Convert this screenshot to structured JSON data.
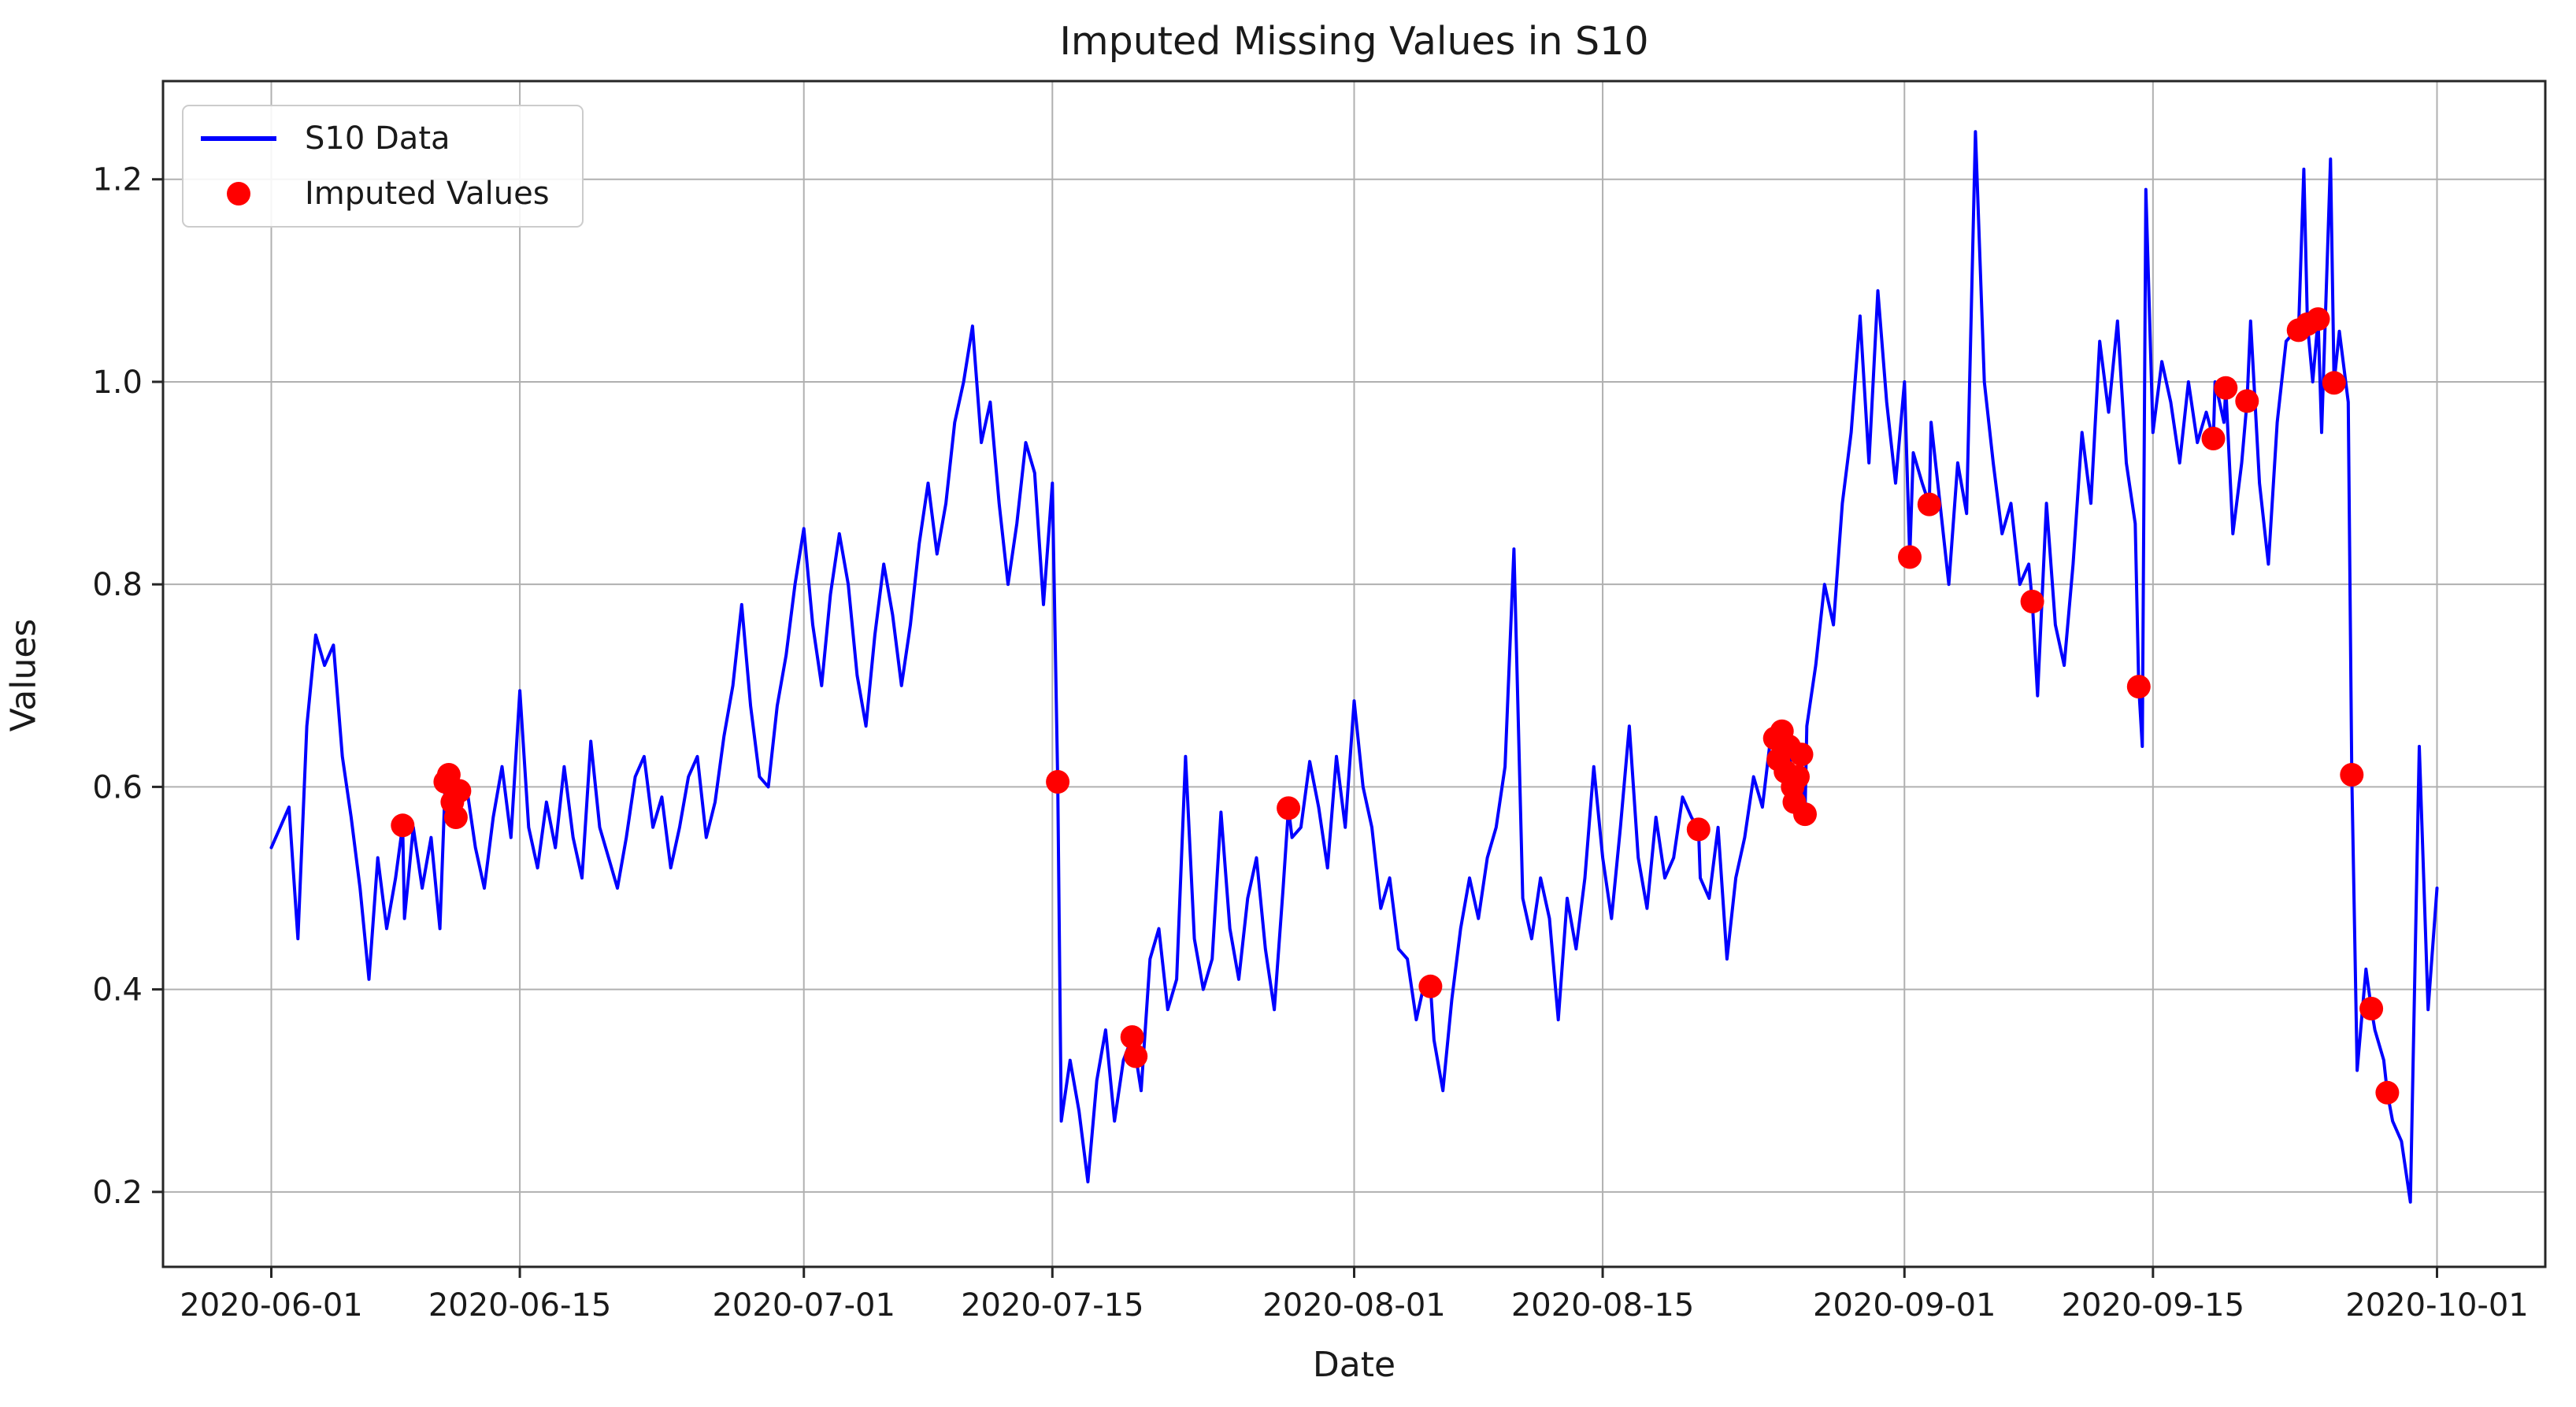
{
  "title": "Imputed Missing Values in S10",
  "axes": {
    "xlabel": "Date",
    "ylabel": "Values",
    "x_ticks": [
      {
        "day": 0,
        "label": "2020-06-01"
      },
      {
        "day": 14,
        "label": "2020-06-15"
      },
      {
        "day": 30,
        "label": "2020-07-01"
      },
      {
        "day": 44,
        "label": "2020-07-15"
      },
      {
        "day": 61,
        "label": "2020-08-01"
      },
      {
        "day": 75,
        "label": "2020-08-15"
      },
      {
        "day": 92,
        "label": "2020-09-01"
      },
      {
        "day": 106,
        "label": "2020-09-15"
      },
      {
        "day": 122,
        "label": "2020-10-01"
      }
    ],
    "y_ticks": [
      {
        "value": 0.2,
        "label": "0.2"
      },
      {
        "value": 0.4,
        "label": "0.4"
      },
      {
        "value": 0.6,
        "label": "0.6"
      },
      {
        "value": 0.8,
        "label": "0.8"
      },
      {
        "value": 1.0,
        "label": "1.0"
      },
      {
        "value": 1.2,
        "label": "1.2"
      }
    ],
    "grid": true,
    "grid_color": "#b0b0b0",
    "spine_color": "#262626"
  },
  "legend": {
    "items": [
      {
        "label": "S10 Data",
        "marker": "line",
        "color": "#0000ff"
      },
      {
        "label": "Imputed Values",
        "marker": "dot",
        "color": "#ff0000"
      }
    ],
    "position": "upper-left"
  },
  "chart_data": {
    "type": "line",
    "x_unit": "days since 2020-06-01",
    "xlim_days": [
      -6.1,
      128.1
    ],
    "ylim": [
      0.126,
      1.297
    ],
    "series": [
      {
        "name": "S10 Data",
        "color": "#0000ff",
        "points": [
          [
            0,
            0.54
          ],
          [
            0.5,
            0.56
          ],
          [
            1,
            0.58
          ],
          [
            1.5,
            0.45
          ],
          [
            2,
            0.66
          ],
          [
            2.5,
            0.75
          ],
          [
            3,
            0.72
          ],
          [
            3.5,
            0.74
          ],
          [
            4,
            0.63
          ],
          [
            4.5,
            0.57
          ],
          [
            5,
            0.5
          ],
          [
            5.5,
            0.41
          ],
          [
            6,
            0.53
          ],
          [
            6.5,
            0.46
          ],
          [
            7,
            0.51
          ],
          [
            7.5,
            0.47
          ],
          [
            8,
            0.56
          ],
          [
            8.5,
            0.5
          ],
          [
            9,
            0.55
          ],
          [
            9.5,
            0.46
          ],
          [
            11,
            0.6
          ],
          [
            11.5,
            0.54
          ],
          [
            12,
            0.5
          ],
          [
            12.5,
            0.57
          ],
          [
            13,
            0.62
          ],
          [
            13.5,
            0.55
          ],
          [
            14,
            0.695
          ],
          [
            14.5,
            0.56
          ],
          [
            15,
            0.52
          ],
          [
            15.5,
            0.585
          ],
          [
            16,
            0.54
          ],
          [
            16.5,
            0.62
          ],
          [
            17,
            0.55
          ],
          [
            17.5,
            0.51
          ],
          [
            18,
            0.645
          ],
          [
            18.5,
            0.56
          ],
          [
            19,
            0.53
          ],
          [
            19.5,
            0.5
          ],
          [
            20,
            0.55
          ],
          [
            20.5,
            0.61
          ],
          [
            21,
            0.63
          ],
          [
            21.5,
            0.56
          ],
          [
            22,
            0.59
          ],
          [
            22.5,
            0.52
          ],
          [
            23,
            0.56
          ],
          [
            23.5,
            0.61
          ],
          [
            24,
            0.63
          ],
          [
            24.5,
            0.55
          ],
          [
            25,
            0.585
          ],
          [
            25.5,
            0.65
          ],
          [
            26,
            0.7
          ],
          [
            26.5,
            0.78
          ],
          [
            27,
            0.68
          ],
          [
            27.5,
            0.61
          ],
          [
            28,
            0.6
          ],
          [
            28.5,
            0.68
          ],
          [
            29,
            0.73
          ],
          [
            29.5,
            0.8
          ],
          [
            30,
            0.855
          ],
          [
            30.5,
            0.76
          ],
          [
            31,
            0.7
          ],
          [
            31.5,
            0.79
          ],
          [
            32,
            0.85
          ],
          [
            32.5,
            0.8
          ],
          [
            33,
            0.71
          ],
          [
            33.5,
            0.66
          ],
          [
            34,
            0.75
          ],
          [
            34.5,
            0.82
          ],
          [
            35,
            0.77
          ],
          [
            35.5,
            0.7
          ],
          [
            36,
            0.76
          ],
          [
            36.5,
            0.84
          ],
          [
            37,
            0.9
          ],
          [
            37.5,
            0.83
          ],
          [
            38,
            0.88
          ],
          [
            38.5,
            0.96
          ],
          [
            39,
            1.0
          ],
          [
            39.5,
            1.055
          ],
          [
            40,
            0.94
          ],
          [
            40.5,
            0.98
          ],
          [
            41,
            0.88
          ],
          [
            41.5,
            0.8
          ],
          [
            42,
            0.86
          ],
          [
            42.5,
            0.94
          ],
          [
            43,
            0.91
          ],
          [
            43.5,
            0.78
          ],
          [
            44,
            0.9
          ],
          [
            44.5,
            0.27
          ],
          [
            45,
            0.33
          ],
          [
            45.5,
            0.28
          ],
          [
            46,
            0.21
          ],
          [
            46.5,
            0.31
          ],
          [
            47,
            0.36
          ],
          [
            47.5,
            0.27
          ],
          [
            48,
            0.33
          ],
          [
            49,
            0.3
          ],
          [
            49.5,
            0.43
          ],
          [
            50,
            0.46
          ],
          [
            50.5,
            0.38
          ],
          [
            51,
            0.41
          ],
          [
            51.5,
            0.63
          ],
          [
            52,
            0.45
          ],
          [
            52.5,
            0.4
          ],
          [
            53,
            0.43
          ],
          [
            53.5,
            0.575
          ],
          [
            54,
            0.46
          ],
          [
            54.5,
            0.41
          ],
          [
            55,
            0.49
          ],
          [
            55.5,
            0.53
          ],
          [
            56,
            0.44
          ],
          [
            56.5,
            0.38
          ],
          [
            57,
            0.5
          ],
          [
            57.5,
            0.55
          ],
          [
            58,
            0.56
          ],
          [
            58.5,
            0.625
          ],
          [
            59,
            0.58
          ],
          [
            59.5,
            0.52
          ],
          [
            60,
            0.63
          ],
          [
            60.5,
            0.56
          ],
          [
            61,
            0.685
          ],
          [
            61.5,
            0.6
          ],
          [
            62,
            0.56
          ],
          [
            62.5,
            0.48
          ],
          [
            63,
            0.51
          ],
          [
            63.5,
            0.44
          ],
          [
            64,
            0.43
          ],
          [
            64.5,
            0.37
          ],
          [
            65,
            0.41
          ],
          [
            65.5,
            0.35
          ],
          [
            66,
            0.3
          ],
          [
            66.5,
            0.39
          ],
          [
            67,
            0.46
          ],
          [
            67.5,
            0.51
          ],
          [
            68,
            0.47
          ],
          [
            68.5,
            0.53
          ],
          [
            69,
            0.56
          ],
          [
            69.5,
            0.62
          ],
          [
            70,
            0.835
          ],
          [
            70.5,
            0.49
          ],
          [
            71,
            0.45
          ],
          [
            71.5,
            0.51
          ],
          [
            72,
            0.47
          ],
          [
            72.5,
            0.37
          ],
          [
            73,
            0.49
          ],
          [
            73.5,
            0.44
          ],
          [
            74,
            0.51
          ],
          [
            74.5,
            0.62
          ],
          [
            75,
            0.53
          ],
          [
            75.5,
            0.47
          ],
          [
            76,
            0.56
          ],
          [
            76.5,
            0.66
          ],
          [
            77,
            0.53
          ],
          [
            77.5,
            0.48
          ],
          [
            78,
            0.57
          ],
          [
            78.5,
            0.51
          ],
          [
            79,
            0.53
          ],
          [
            79.5,
            0.59
          ],
          [
            80,
            0.57
          ],
          [
            80.5,
            0.51
          ],
          [
            81,
            0.49
          ],
          [
            81.5,
            0.56
          ],
          [
            82,
            0.43
          ],
          [
            82.5,
            0.51
          ],
          [
            83,
            0.55
          ],
          [
            83.5,
            0.61
          ],
          [
            84,
            0.58
          ],
          [
            84.4,
            0.64
          ],
          [
            86.5,
            0.66
          ],
          [
            87,
            0.72
          ],
          [
            87.5,
            0.8
          ],
          [
            88,
            0.76
          ],
          [
            88.5,
            0.88
          ],
          [
            89,
            0.95
          ],
          [
            89.5,
            1.065
          ],
          [
            90,
            0.92
          ],
          [
            90.5,
            1.09
          ],
          [
            91,
            0.98
          ],
          [
            91.5,
            0.9
          ],
          [
            92,
            1.0
          ],
          [
            92.5,
            0.93
          ],
          [
            93,
            0.9
          ],
          [
            93.5,
            0.96
          ],
          [
            94,
            0.88
          ],
          [
            94.5,
            0.8
          ],
          [
            95,
            0.92
          ],
          [
            95.5,
            0.87
          ],
          [
            96,
            1.247
          ],
          [
            96.5,
            1.0
          ],
          [
            97,
            0.92
          ],
          [
            97.5,
            0.85
          ],
          [
            98,
            0.88
          ],
          [
            98.5,
            0.8
          ],
          [
            99,
            0.82
          ],
          [
            99.5,
            0.69
          ],
          [
            100,
            0.88
          ],
          [
            100.5,
            0.76
          ],
          [
            101,
            0.72
          ],
          [
            101.5,
            0.82
          ],
          [
            102,
            0.95
          ],
          [
            102.5,
            0.88
          ],
          [
            103,
            1.04
          ],
          [
            103.5,
            0.97
          ],
          [
            104,
            1.06
          ],
          [
            104.5,
            0.92
          ],
          [
            105,
            0.86
          ],
          [
            105.4,
            0.64
          ],
          [
            105.6,
            1.19
          ],
          [
            106,
            0.95
          ],
          [
            106.5,
            1.02
          ],
          [
            107,
            0.98
          ],
          [
            107.5,
            0.92
          ],
          [
            108,
            1.0
          ],
          [
            108.5,
            0.94
          ],
          [
            109,
            0.97
          ],
          [
            109.5,
            1.0
          ],
          [
            110,
            0.96
          ],
          [
            110.5,
            0.85
          ],
          [
            111,
            0.92
          ],
          [
            111.5,
            1.06
          ],
          [
            112,
            0.9
          ],
          [
            112.5,
            0.82
          ],
          [
            113,
            0.96
          ],
          [
            113.5,
            1.04
          ],
          [
            114,
            1.05
          ],
          [
            114.5,
            1.21
          ],
          [
            115,
            1.0
          ],
          [
            115.5,
            0.95
          ],
          [
            116,
            1.22
          ],
          [
            116.5,
            1.05
          ],
          [
            117,
            0.98
          ],
          [
            117.5,
            0.32
          ],
          [
            118,
            0.42
          ],
          [
            118.5,
            0.36
          ],
          [
            119,
            0.33
          ],
          [
            119.5,
            0.27
          ],
          [
            120,
            0.25
          ],
          [
            120.5,
            0.19
          ],
          [
            121,
            0.64
          ],
          [
            121.5,
            0.38
          ],
          [
            122,
            0.5
          ]
        ]
      },
      {
        "name": "Imputed Values",
        "color": "#ff0000",
        "type": "scatter",
        "points": [
          [
            7.4,
            0.562,
            "2020-06-08"
          ],
          [
            9.8,
            0.605,
            "2020-06-10"
          ],
          [
            10.0,
            0.612,
            "2020-06-11"
          ],
          [
            10.2,
            0.585,
            "2020-06-11"
          ],
          [
            10.4,
            0.57,
            "2020-06-11"
          ],
          [
            10.6,
            0.596,
            "2020-06-11"
          ],
          [
            44.3,
            0.605,
            "2020-07-15"
          ],
          [
            48.5,
            0.353,
            "2020-07-19"
          ],
          [
            48.7,
            0.334,
            "2020-07-19"
          ],
          [
            57.3,
            0.579,
            "2020-07-28"
          ],
          [
            65.3,
            0.403,
            "2020-08-05"
          ],
          [
            80.4,
            0.558,
            "2020-08-20"
          ],
          [
            84.7,
            0.648,
            "2020-08-24"
          ],
          [
            84.9,
            0.627,
            "2020-08-24"
          ],
          [
            85.1,
            0.655,
            "2020-08-25"
          ],
          [
            85.3,
            0.615,
            "2020-08-25"
          ],
          [
            85.5,
            0.64,
            "2020-08-25"
          ],
          [
            85.7,
            0.6,
            "2020-08-25"
          ],
          [
            85.8,
            0.585,
            "2020-08-25"
          ],
          [
            86.0,
            0.61,
            "2020-08-26"
          ],
          [
            86.2,
            0.632,
            "2020-08-26"
          ],
          [
            86.4,
            0.573,
            "2020-08-26"
          ],
          [
            92.3,
            0.827,
            "2020-09-01"
          ],
          [
            93.4,
            0.879,
            "2020-09-02"
          ],
          [
            99.2,
            0.783,
            "2020-09-08"
          ],
          [
            105.2,
            0.699,
            "2020-09-14"
          ],
          [
            109.4,
            0.944,
            "2020-09-18"
          ],
          [
            110.1,
            0.994,
            "2020-09-19"
          ],
          [
            111.3,
            0.981,
            "2020-09-20"
          ],
          [
            114.2,
            1.051,
            "2020-09-23"
          ],
          [
            114.7,
            1.057,
            "2020-09-23"
          ],
          [
            115.3,
            1.062,
            "2020-09-24"
          ],
          [
            116.2,
            0.999,
            "2020-09-25"
          ],
          [
            117.2,
            0.612,
            "2020-09-26"
          ],
          [
            118.3,
            0.381,
            "2020-09-27"
          ],
          [
            119.2,
            0.298,
            "2020-09-28"
          ]
        ]
      }
    ]
  }
}
